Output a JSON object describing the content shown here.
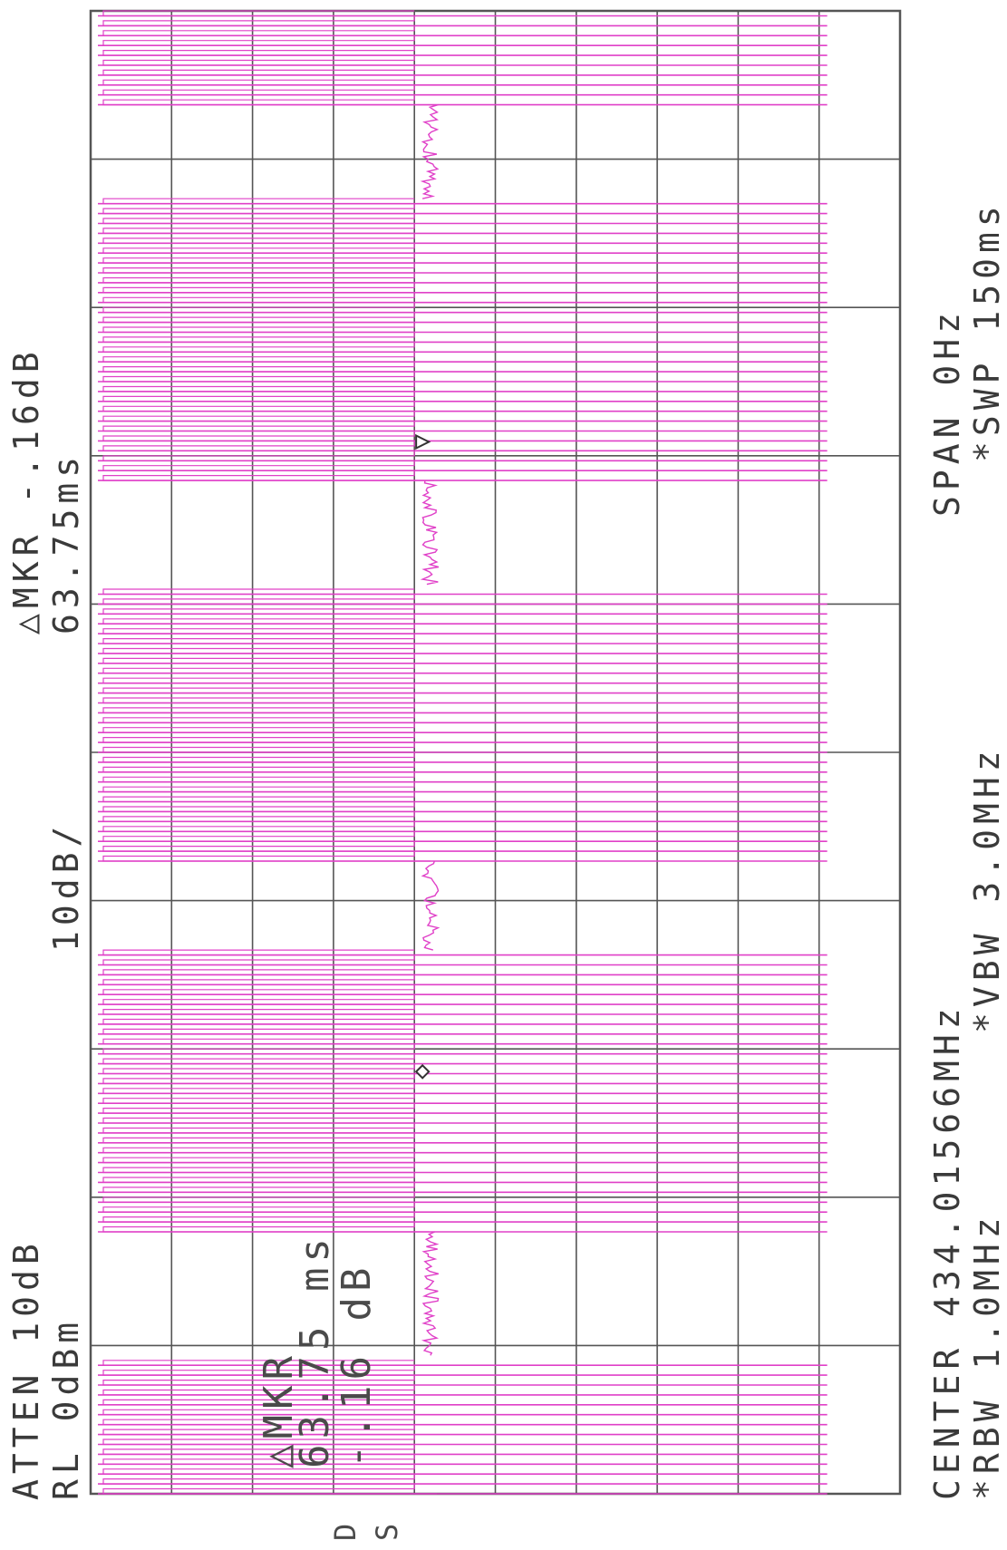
{
  "annotations": {
    "atten": "ATTEN 10dB",
    "rl": "RL 0dBm",
    "scale": "10dB/",
    "dmkr_header": "△MKR -.16dB",
    "dmkr_time_header": "63.75ms",
    "dmkr_box_label": "△MKR",
    "dmkr_box_time": "63.75 ms",
    "dmkr_box_db": "-.16 dB",
    "center": "CENTER 434.01566MHz",
    "span": "SPAN 0Hz",
    "rbw": "*RBW 1.0MHz",
    "vbw": "*VBW 3.0MHz",
    "swp": "*SWP 150ms",
    "footer_d": "D",
    "footer_s": "S"
  },
  "colors": {
    "trace": "#e040c8",
    "grid": "#555555",
    "text": "#3a3a3a"
  },
  "chart_data": {
    "type": "line",
    "orientation": "rotated-90-ccw",
    "title": "",
    "xlabel": "",
    "ylabel": "",
    "x_unit": "ms",
    "y_unit": "dBm",
    "xlim": [
      0,
      150
    ],
    "ylim": [
      -100,
      0
    ],
    "grid": true,
    "divisions": {
      "x": 10,
      "y": 10
    },
    "reference_level_dbm": 0,
    "scale_db_per_div": 10,
    "series": [
      {
        "bursts": [
          {
            "start_ms": 0.0,
            "end_ms": 14.0
          },
          {
            "start_ms": 26.5,
            "end_ms": 55.0
          },
          {
            "start_ms": 64.0,
            "end_ms": 92.0
          },
          {
            "start_ms": 102.5,
            "end_ms": 131.0
          },
          {
            "start_ms": 140.5,
            "end_ms": 150.0
          }
        ],
        "pulse_spacing_ms": 1.0,
        "pulse_high_dbm": -9,
        "pulse_low_dbm": -60,
        "noise_floor_dbm": -58
      }
    ],
    "markers": [
      {
        "symbol": "diamond",
        "time_ms": 42.7,
        "level_dbm": -59
      },
      {
        "symbol": "triangle",
        "time_ms": 106.4,
        "level_dbm": -59
      }
    ]
  }
}
